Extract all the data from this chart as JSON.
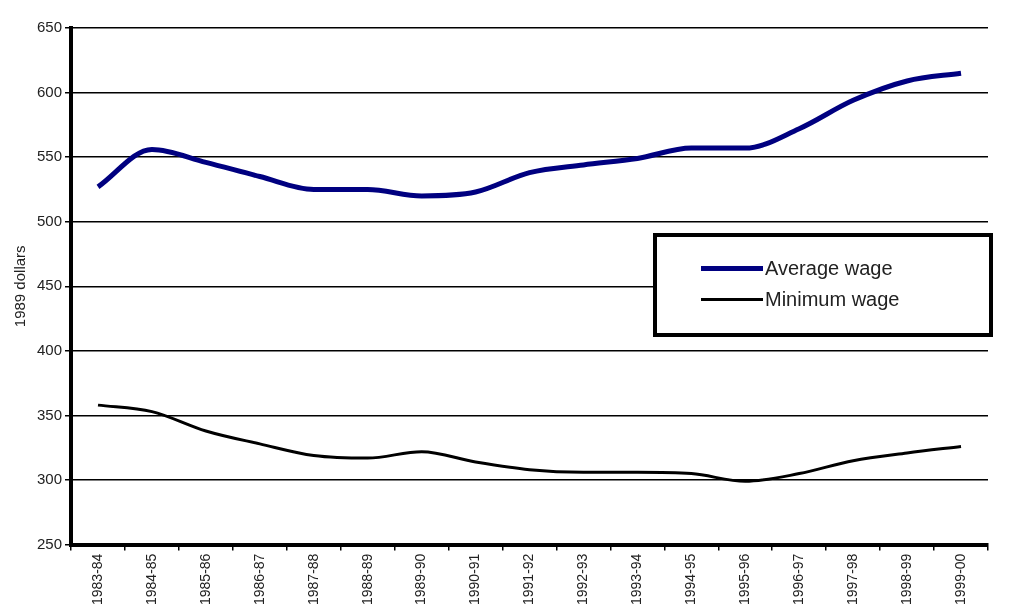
{
  "chart_data": {
    "type": "line",
    "ylabel": "1989 dollars",
    "categories": [
      "1983-84",
      "1984-85",
      "1985-86",
      "1986-87",
      "1987-88",
      "1988-89",
      "1989-90",
      "1990-91",
      "1991-92",
      "1992-93",
      "1993-94",
      "1994-95",
      "1995-96",
      "1996-97",
      "1997-98",
      "1998-99",
      "1999-00"
    ],
    "series": [
      {
        "name": "Average wage",
        "color": "#000080",
        "values": [
          527,
          556,
          546,
          535,
          525,
          525,
          520,
          523,
          538,
          544,
          549,
          557,
          557,
          572,
          594,
          609,
          615
        ]
      },
      {
        "name": "Minimum wage",
        "color": "#000000",
        "values": [
          358,
          353,
          338,
          328,
          319,
          317,
          322,
          314,
          308,
          306,
          306,
          305,
          299,
          305,
          315,
          321,
          326
        ]
      }
    ],
    "ylim": [
      250,
      650
    ],
    "yticks": [
      250,
      300,
      350,
      400,
      450,
      500,
      550,
      600,
      650
    ],
    "grid": "y",
    "legend": "right",
    "marker": "none",
    "line_style": "solid"
  }
}
